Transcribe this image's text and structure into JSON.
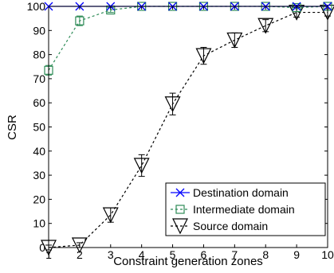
{
  "chart_data": {
    "type": "line",
    "xlabel": "Constraint generation zones",
    "ylabel": "CSR",
    "x": [
      1,
      2,
      3,
      4,
      5,
      6,
      7,
      8,
      9,
      10
    ],
    "xlim": [
      1,
      10
    ],
    "ylim": [
      0,
      100
    ],
    "xticks": [
      1,
      2,
      3,
      4,
      5,
      6,
      7,
      8,
      9,
      10
    ],
    "yticks": [
      0,
      10,
      20,
      30,
      40,
      50,
      60,
      70,
      80,
      90,
      100
    ],
    "grid": false,
    "legend_position": "bottom-right",
    "series": [
      {
        "name": "Destination domain",
        "marker": "x",
        "line_style": "solid",
        "color": "#0000ff",
        "values": [
          100,
          100,
          100,
          100,
          100,
          100,
          100,
          100,
          100,
          100
        ],
        "errors": [
          0,
          0,
          0,
          0,
          0,
          0,
          0,
          0,
          0,
          0
        ]
      },
      {
        "name": "Intermediate domain",
        "marker": "square",
        "line_style": "dashed",
        "color": "#2e8b57",
        "values": [
          73.5,
          94,
          98.5,
          100,
          100,
          100,
          100,
          100,
          99.5,
          100
        ],
        "errors": [
          2,
          2,
          1,
          0,
          0,
          0,
          0,
          0,
          0.5,
          0
        ]
      },
      {
        "name": "Source domain",
        "marker": "triangle-down",
        "line_style": "dashed",
        "color": "#000000",
        "values": [
          0,
          1,
          13.5,
          34,
          59.5,
          79.5,
          86,
          92,
          97.5,
          97.5
        ],
        "errors": [
          1,
          1,
          3,
          4.5,
          4.5,
          3.5,
          3,
          2.5,
          2,
          1.5
        ]
      }
    ]
  }
}
